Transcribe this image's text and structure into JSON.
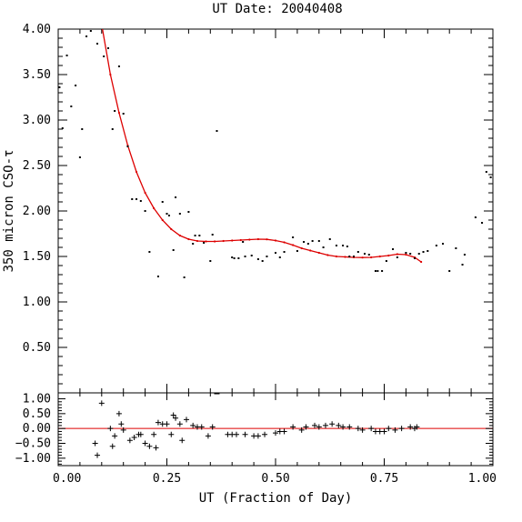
{
  "chart_data": [
    {
      "type": "scatter",
      "title": "UT Date: 20040408",
      "ylabel": "350 micron CSO-τ",
      "xlabel": "",
      "xlim": [
        0,
        1
      ],
      "ylim": [
        0,
        4
      ],
      "grid": false,
      "x_ticks": [
        0,
        0.25,
        0.5,
        0.75,
        1
      ],
      "x_tick_labels": [
        "",
        "",
        "",
        "",
        ""
      ],
      "y_ticks": [
        0.5,
        1.0,
        1.5,
        2.0,
        2.5,
        3.0,
        3.5,
        4.0
      ],
      "y_tick_labels": [
        "0.50",
        "1.00",
        "1.50",
        "2.00",
        "2.50",
        "3.00",
        "3.50",
        "4.00"
      ],
      "series": [
        {
          "kind": "points",
          "color": "#000000",
          "points": [
            [
              0.003,
              3.36
            ],
            [
              0.01,
              2.91
            ],
            [
              0.02,
              3.71
            ],
            [
              0.03,
              3.15
            ],
            [
              0.04,
              3.38
            ],
            [
              0.05,
              2.59
            ],
            [
              0.055,
              2.9
            ],
            [
              0.065,
              3.92
            ],
            [
              0.075,
              3.98
            ],
            [
              0.09,
              3.84
            ],
            [
              0.105,
              3.7
            ],
            [
              0.115,
              3.79
            ],
            [
              0.125,
              2.9
            ],
            [
              0.13,
              3.1
            ],
            [
              0.14,
              3.59
            ],
            [
              0.15,
              3.07
            ],
            [
              0.16,
              2.71
            ],
            [
              0.17,
              2.13
            ],
            [
              0.18,
              2.13
            ],
            [
              0.19,
              2.11
            ],
            [
              0.2,
              2.0
            ],
            [
              0.21,
              1.55
            ],
            [
              0.23,
              1.28
            ],
            [
              0.24,
              2.1
            ],
            [
              0.25,
              1.97
            ],
            [
              0.255,
              1.95
            ],
            [
              0.265,
              1.57
            ],
            [
              0.27,
              2.15
            ],
            [
              0.28,
              1.97
            ],
            [
              0.29,
              1.27
            ],
            [
              0.3,
              1.99
            ],
            [
              0.31,
              1.64
            ],
            [
              0.315,
              1.73
            ],
            [
              0.325,
              1.73
            ],
            [
              0.335,
              1.65
            ],
            [
              0.35,
              1.45
            ],
            [
              0.355,
              1.74
            ],
            [
              0.365,
              2.88
            ],
            [
              0.4,
              1.49
            ],
            [
              0.405,
              1.48
            ],
            [
              0.415,
              1.48
            ],
            [
              0.425,
              1.66
            ],
            [
              0.43,
              1.5
            ],
            [
              0.445,
              1.51
            ],
            [
              0.46,
              1.47
            ],
            [
              0.47,
              1.45
            ],
            [
              0.48,
              1.5
            ],
            [
              0.5,
              1.54
            ],
            [
              0.51,
              1.49
            ],
            [
              0.52,
              1.55
            ],
            [
              0.54,
              1.71
            ],
            [
              0.55,
              1.56
            ],
            [
              0.565,
              1.66
            ],
            [
              0.575,
              1.64
            ],
            [
              0.585,
              1.67
            ],
            [
              0.6,
              1.67
            ],
            [
              0.61,
              1.6
            ],
            [
              0.625,
              1.69
            ],
            [
              0.64,
              1.62
            ],
            [
              0.655,
              1.62
            ],
            [
              0.665,
              1.61
            ],
            [
              0.67,
              1.5
            ],
            [
              0.68,
              1.5
            ],
            [
              0.69,
              1.55
            ],
            [
              0.705,
              1.53
            ],
            [
              0.715,
              1.52
            ],
            [
              0.73,
              1.34
            ],
            [
              0.735,
              1.34
            ],
            [
              0.745,
              1.34
            ],
            [
              0.755,
              1.45
            ],
            [
              0.77,
              1.58
            ],
            [
              0.78,
              1.49
            ],
            [
              0.8,
              1.54
            ],
            [
              0.81,
              1.53
            ],
            [
              0.82,
              1.48
            ],
            [
              0.83,
              1.53
            ],
            [
              0.84,
              1.55
            ],
            [
              0.85,
              1.56
            ],
            [
              0.87,
              1.62
            ],
            [
              0.885,
              1.64
            ],
            [
              0.9,
              1.34
            ],
            [
              0.915,
              1.59
            ],
            [
              0.93,
              1.41
            ],
            [
              0.935,
              1.52
            ],
            [
              0.96,
              1.93
            ],
            [
              0.975,
              1.87
            ],
            [
              0.985,
              2.43
            ],
            [
              0.995,
              2.37
            ]
          ]
        },
        {
          "kind": "fit",
          "color": "#dd0000",
          "x": [
            0.1,
            0.12,
            0.14,
            0.16,
            0.18,
            0.2,
            0.22,
            0.24,
            0.26,
            0.28,
            0.3,
            0.32,
            0.34,
            0.36,
            0.38,
            0.4,
            0.42,
            0.44,
            0.46,
            0.48,
            0.5,
            0.52,
            0.54,
            0.56,
            0.58,
            0.6,
            0.62,
            0.64,
            0.66,
            0.68,
            0.7,
            0.72,
            0.74,
            0.76,
            0.78,
            0.8,
            0.82,
            0.835
          ],
          "y": [
            4.05,
            3.5,
            3.08,
            2.72,
            2.43,
            2.2,
            2.03,
            1.9,
            1.8,
            1.73,
            1.69,
            1.67,
            1.665,
            1.665,
            1.67,
            1.675,
            1.68,
            1.685,
            1.69,
            1.688,
            1.675,
            1.655,
            1.625,
            1.59,
            1.565,
            1.54,
            1.515,
            1.5,
            1.495,
            1.49,
            1.488,
            1.49,
            1.5,
            1.51,
            1.525,
            1.52,
            1.49,
            1.44
          ]
        }
      ]
    },
    {
      "type": "scatter",
      "title": "",
      "xlabel": "UT (Fraction of Day)",
      "ylabel": "",
      "xlim": [
        0,
        1
      ],
      "ylim": [
        -1.25,
        1.2
      ],
      "grid": false,
      "x_ticks": [
        0,
        0.25,
        0.5,
        0.75,
        1
      ],
      "x_tick_labels": [
        "0.00",
        "0.25",
        "0.50",
        "0.75",
        "1.00"
      ],
      "y_ticks": [
        -1.0,
        -0.5,
        0.0,
        0.5,
        1.0
      ],
      "y_tick_labels": [
        "−1.00",
        "−0.50",
        "0.00",
        "0.50",
        "1.00"
      ],
      "zero_line": 0,
      "series": [
        {
          "kind": "residuals",
          "color": "#000000",
          "points": [
            [
              0.085,
              -0.5
            ],
            [
              0.09,
              -0.9
            ],
            [
              0.1,
              0.85
            ],
            [
              0.12,
              0.0
            ],
            [
              0.125,
              -0.6
            ],
            [
              0.13,
              -0.25
            ],
            [
              0.14,
              0.5
            ],
            [
              0.145,
              0.15
            ],
            [
              0.15,
              -0.05
            ],
            [
              0.165,
              -0.4
            ],
            [
              0.175,
              -0.3
            ],
            [
              0.185,
              -0.2
            ],
            [
              0.19,
              -0.2
            ],
            [
              0.2,
              -0.5
            ],
            [
              0.21,
              -0.6
            ],
            [
              0.22,
              -0.2
            ],
            [
              0.225,
              -0.65
            ],
            [
              0.23,
              0.2
            ],
            [
              0.24,
              0.15
            ],
            [
              0.25,
              0.15
            ],
            [
              0.26,
              -0.2
            ],
            [
              0.265,
              0.45
            ],
            [
              0.27,
              0.35
            ],
            [
              0.28,
              0.15
            ],
            [
              0.285,
              -0.4
            ],
            [
              0.295,
              0.3
            ],
            [
              0.31,
              0.1
            ],
            [
              0.32,
              0.05
            ],
            [
              0.33,
              0.05
            ],
            [
              0.345,
              -0.25
            ],
            [
              0.355,
              0.05
            ],
            [
              0.39,
              -0.2
            ],
            [
              0.4,
              -0.2
            ],
            [
              0.41,
              -0.2
            ],
            [
              0.43,
              -0.2
            ],
            [
              0.45,
              -0.25
            ],
            [
              0.46,
              -0.25
            ],
            [
              0.475,
              -0.2
            ],
            [
              0.5,
              -0.15
            ],
            [
              0.51,
              -0.1
            ],
            [
              0.52,
              -0.1
            ],
            [
              0.54,
              0.05
            ],
            [
              0.56,
              -0.05
            ],
            [
              0.57,
              0.05
            ],
            [
              0.59,
              0.1
            ],
            [
              0.6,
              0.05
            ],
            [
              0.615,
              0.1
            ],
            [
              0.63,
              0.15
            ],
            [
              0.645,
              0.1
            ],
            [
              0.655,
              0.05
            ],
            [
              0.67,
              0.05
            ],
            [
              0.69,
              0.0
            ],
            [
              0.7,
              -0.05
            ],
            [
              0.72,
              0.0
            ],
            [
              0.73,
              -0.1
            ],
            [
              0.74,
              -0.1
            ],
            [
              0.75,
              -0.1
            ],
            [
              0.76,
              0.0
            ],
            [
              0.775,
              -0.05
            ],
            [
              0.79,
              0.0
            ],
            [
              0.81,
              0.05
            ],
            [
              0.82,
              0.0
            ],
            [
              0.825,
              0.05
            ]
          ]
        }
      ]
    }
  ]
}
